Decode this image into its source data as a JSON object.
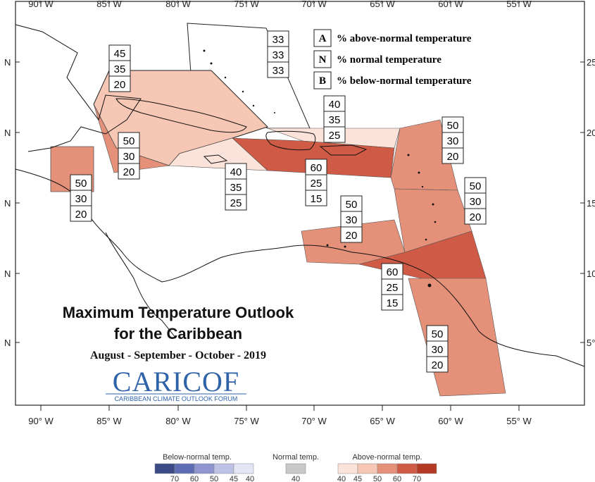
{
  "axes": {
    "lon_labels": [
      "90° W",
      "85° W",
      "80° W",
      "75° W",
      "70° W",
      "65° W",
      "60° W",
      "55° W"
    ],
    "lat_labels_left": [
      "N",
      "N",
      "N",
      "N",
      "N"
    ],
    "lat_labels_right": [
      "25",
      "20",
      "15",
      "10",
      "5°"
    ]
  },
  "key": {
    "A": {
      "letter": "A",
      "text": "% above-normal temperature"
    },
    "N": {
      "letter": "N",
      "text": "% normal temperature"
    },
    "B": {
      "letter": "B",
      "text": "% below-normal temperature"
    }
  },
  "zones": [
    {
      "id": "bahamas",
      "above": "33",
      "normal": "33",
      "below": "33",
      "color": "#ffffff"
    },
    {
      "id": "cuba",
      "above": "45",
      "normal": "35",
      "below": "20",
      "color": "#f6c7b4"
    },
    {
      "id": "cayman-jamaica",
      "above": "50",
      "normal": "30",
      "below": "20",
      "color": "#e5917a"
    },
    {
      "id": "belize",
      "above": "50",
      "normal": "30",
      "below": "20",
      "color": "#e5917a"
    },
    {
      "id": "jamaica-south",
      "above": "40",
      "normal": "35",
      "below": "25",
      "color": "#fbe3da"
    },
    {
      "id": "hispaniola-n",
      "above": "40",
      "normal": "35",
      "below": "25",
      "color": "#fbe3da"
    },
    {
      "id": "greater-antilles",
      "above": "60",
      "normal": "25",
      "below": "15",
      "color": "#cf5a45"
    },
    {
      "id": "leeward",
      "above": "50",
      "normal": "30",
      "below": "20",
      "color": "#e5917a"
    },
    {
      "id": "windward",
      "above": "50",
      "normal": "30",
      "below": "20",
      "color": "#e5917a"
    },
    {
      "id": "abc-islands",
      "above": "50",
      "normal": "30",
      "below": "20",
      "color": "#e5917a"
    },
    {
      "id": "trinidad",
      "above": "60",
      "normal": "25",
      "below": "15",
      "color": "#cf5a45"
    },
    {
      "id": "guianas",
      "above": "50",
      "normal": "30",
      "below": "20",
      "color": "#e5917a"
    }
  ],
  "title": {
    "line1": "Maximum Temperature Outlook",
    "line2": "for the Caribbean",
    "period": "August - September - October - 2019"
  },
  "logo": {
    "text": "CARICOF",
    "subtitle": "CARIBBEAN CLIMATE OUTLOOK FORUM"
  },
  "scale": {
    "below_title": "Below-normal temp.",
    "normal_title": "Normal temp.",
    "above_title": "Above-normal temp.",
    "below_colors": [
      "#3a4b86",
      "#5c6db3",
      "#8e95cf",
      "#bdc1e6",
      "#e4e6f5"
    ],
    "below_ticks": [
      "70",
      "60",
      "50",
      "45",
      "40"
    ],
    "normal_color": "#c8c8c8",
    "normal_ticks": [
      "40"
    ],
    "above_colors": [
      "#fbe3da",
      "#f6c7b4",
      "#e5917a",
      "#cf5a45",
      "#b53a26"
    ],
    "above_ticks": [
      "40",
      "45",
      "50",
      "60",
      "70"
    ]
  }
}
